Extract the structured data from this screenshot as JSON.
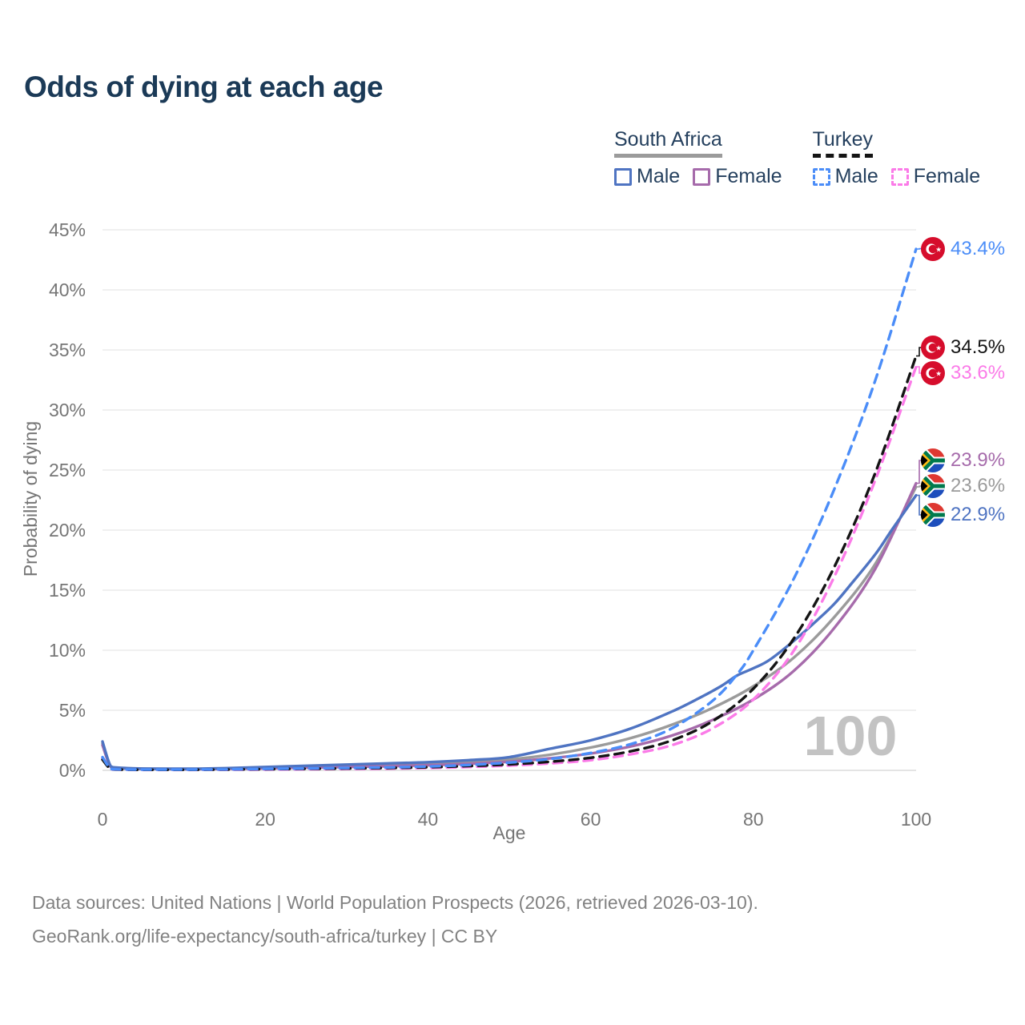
{
  "title": "Odds of dying at each age",
  "legend": {
    "groups": [
      {
        "label": "South Africa",
        "line_style": "solid",
        "line_color": "#9b9b9b",
        "items": [
          {
            "label": "Male",
            "color": "#4f74c2",
            "dashed": false
          },
          {
            "label": "Female",
            "color": "#a66bab",
            "dashed": false
          }
        ]
      },
      {
        "label": "Turkey",
        "line_style": "dashed",
        "line_color": "#141414",
        "items": [
          {
            "label": "Male",
            "color": "#4b8df8",
            "dashed": true
          },
          {
            "label": "Female",
            "color": "#fb7be8",
            "dashed": true
          }
        ]
      }
    ]
  },
  "chart_data": {
    "type": "line",
    "title": "Odds of dying at each age",
    "xlabel": "Age",
    "ylabel": "Probability of dying",
    "xlim": [
      0,
      100
    ],
    "ylim": [
      0,
      45
    ],
    "x_ticks": [
      0,
      20,
      40,
      60,
      80,
      100
    ],
    "y_ticks": [
      0,
      5,
      10,
      15,
      20,
      25,
      30,
      35,
      40,
      45
    ],
    "y_tick_format": "percent",
    "grid": "horizontal",
    "legend_position": "top-right",
    "watermark": "100",
    "series": [
      {
        "name": "South Africa — Both sexes",
        "country": "South Africa",
        "sex": "Both",
        "color": "#9b9b9b",
        "dashed": false,
        "end_label": "23.6%",
        "flag": "za",
        "points": [
          [
            0,
            2.25
          ],
          [
            1,
            0.3
          ],
          [
            2,
            0.2
          ],
          [
            5,
            0.13
          ],
          [
            10,
            0.11
          ],
          [
            15,
            0.15
          ],
          [
            20,
            0.23
          ],
          [
            25,
            0.3
          ],
          [
            30,
            0.38
          ],
          [
            35,
            0.46
          ],
          [
            40,
            0.55
          ],
          [
            45,
            0.7
          ],
          [
            50,
            0.9
          ],
          [
            55,
            1.3
          ],
          [
            60,
            1.9
          ],
          [
            65,
            2.7
          ],
          [
            70,
            3.8
          ],
          [
            75,
            5.2
          ],
          [
            80,
            7.0
          ],
          [
            85,
            9.4
          ],
          [
            90,
            12.8
          ],
          [
            95,
            17.2
          ],
          [
            100,
            23.6
          ]
        ]
      },
      {
        "name": "South Africa — Female",
        "country": "South Africa",
        "sex": "Female",
        "color": "#a66bab",
        "dashed": false,
        "end_label": "23.9%",
        "flag": "za",
        "points": [
          [
            0,
            2.1
          ],
          [
            1,
            0.28
          ],
          [
            2,
            0.18
          ],
          [
            5,
            0.12
          ],
          [
            10,
            0.1
          ],
          [
            15,
            0.12
          ],
          [
            20,
            0.17
          ],
          [
            25,
            0.22
          ],
          [
            30,
            0.28
          ],
          [
            35,
            0.34
          ],
          [
            40,
            0.42
          ],
          [
            45,
            0.55
          ],
          [
            50,
            0.72
          ],
          [
            55,
            1.0
          ],
          [
            60,
            1.4
          ],
          [
            65,
            2.0
          ],
          [
            70,
            2.9
          ],
          [
            75,
            4.2
          ],
          [
            80,
            5.9
          ],
          [
            85,
            8.3
          ],
          [
            90,
            11.9
          ],
          [
            95,
            16.8
          ],
          [
            100,
            23.9
          ]
        ]
      },
      {
        "name": "South Africa — Male",
        "country": "South Africa",
        "sex": "Male",
        "color": "#4f74c2",
        "dashed": false,
        "end_label": "22.9%",
        "flag": "za",
        "points": [
          [
            0,
            2.4
          ],
          [
            1,
            0.35
          ],
          [
            2,
            0.22
          ],
          [
            5,
            0.15
          ],
          [
            10,
            0.13
          ],
          [
            15,
            0.18
          ],
          [
            20,
            0.28
          ],
          [
            25,
            0.38
          ],
          [
            30,
            0.48
          ],
          [
            35,
            0.58
          ],
          [
            40,
            0.68
          ],
          [
            45,
            0.85
          ],
          [
            50,
            1.1
          ],
          [
            55,
            1.8
          ],
          [
            60,
            2.5
          ],
          [
            65,
            3.5
          ],
          [
            70,
            4.9
          ],
          [
            73,
            5.9
          ],
          [
            76,
            7.0
          ],
          [
            78,
            7.9
          ],
          [
            80,
            8.5
          ],
          [
            82,
            9.2
          ],
          [
            85,
            10.8
          ],
          [
            88,
            12.6
          ],
          [
            90,
            13.9
          ],
          [
            92,
            15.5
          ],
          [
            95,
            18.0
          ],
          [
            97,
            20.0
          ],
          [
            100,
            22.9
          ]
        ]
      },
      {
        "name": "Turkey — Female",
        "country": "Turkey",
        "sex": "Female",
        "color": "#fb7be8",
        "dashed": true,
        "end_label": "33.6%",
        "flag": "tr",
        "points": [
          [
            0,
            1.0
          ],
          [
            1,
            0.09
          ],
          [
            2,
            0.06
          ],
          [
            5,
            0.04
          ],
          [
            10,
            0.04
          ],
          [
            15,
            0.05
          ],
          [
            20,
            0.07
          ],
          [
            25,
            0.09
          ],
          [
            30,
            0.12
          ],
          [
            35,
            0.15
          ],
          [
            40,
            0.2
          ],
          [
            45,
            0.28
          ],
          [
            50,
            0.4
          ],
          [
            55,
            0.58
          ],
          [
            60,
            0.85
          ],
          [
            65,
            1.35
          ],
          [
            70,
            2.1
          ],
          [
            75,
            3.5
          ],
          [
            80,
            5.9
          ],
          [
            85,
            10.0
          ],
          [
            90,
            16.2
          ],
          [
            95,
            24.2
          ],
          [
            100,
            33.6
          ]
        ]
      },
      {
        "name": "Turkey — Both sexes",
        "country": "Turkey",
        "sex": "Both",
        "color": "#141414",
        "dashed": true,
        "end_label": "34.5%",
        "flag": "tr",
        "points": [
          [
            0,
            0.9
          ],
          [
            1,
            0.1
          ],
          [
            2,
            0.07
          ],
          [
            5,
            0.05
          ],
          [
            10,
            0.05
          ],
          [
            15,
            0.07
          ],
          [
            20,
            0.1
          ],
          [
            25,
            0.13
          ],
          [
            30,
            0.16
          ],
          [
            35,
            0.2
          ],
          [
            40,
            0.26
          ],
          [
            45,
            0.36
          ],
          [
            50,
            0.5
          ],
          [
            55,
            0.72
          ],
          [
            60,
            1.05
          ],
          [
            65,
            1.6
          ],
          [
            70,
            2.5
          ],
          [
            75,
            4.1
          ],
          [
            80,
            6.8
          ],
          [
            85,
            11.0
          ],
          [
            90,
            17.0
          ],
          [
            95,
            24.8
          ],
          [
            100,
            34.5
          ]
        ]
      },
      {
        "name": "Turkey — Male",
        "country": "Turkey",
        "sex": "Male",
        "color": "#4b8df8",
        "dashed": true,
        "end_label": "43.4%",
        "flag": "tr",
        "points": [
          [
            0,
            1.1
          ],
          [
            1,
            0.12
          ],
          [
            2,
            0.08
          ],
          [
            5,
            0.06
          ],
          [
            10,
            0.06
          ],
          [
            15,
            0.08
          ],
          [
            20,
            0.12
          ],
          [
            25,
            0.16
          ],
          [
            30,
            0.2
          ],
          [
            35,
            0.25
          ],
          [
            40,
            0.32
          ],
          [
            45,
            0.45
          ],
          [
            50,
            0.65
          ],
          [
            55,
            0.95
          ],
          [
            60,
            1.45
          ],
          [
            65,
            2.2
          ],
          [
            70,
            3.5
          ],
          [
            75,
            5.8
          ],
          [
            78,
            8.0
          ],
          [
            80,
            10.0
          ],
          [
            85,
            16.0
          ],
          [
            90,
            23.5
          ],
          [
            95,
            32.5
          ],
          [
            100,
            43.4
          ]
        ]
      }
    ]
  },
  "footer": {
    "line1": "Data sources: United Nations | World Population Prospects (2026, retrieved 2026-03-10).",
    "line2": "GeoRank.org/life-expectancy/south-africa/turkey | CC BY"
  }
}
